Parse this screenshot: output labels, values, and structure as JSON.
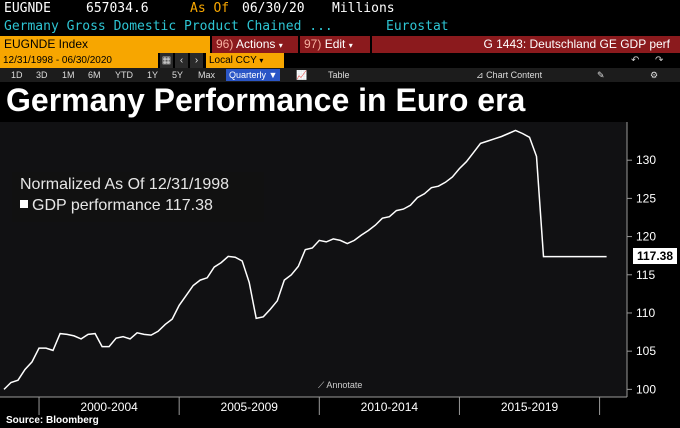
{
  "header": {
    "ticker": "EUGNDE",
    "last_value": "657034.6",
    "as_of_label": "As Of",
    "as_of_date": "06/30/20",
    "units": "Millions",
    "description": "Germany Gross Domestic Product Chained ...",
    "source": "Eurostat"
  },
  "toolbar": {
    "security_field": "EUGNDE Index",
    "actions_code": "96)",
    "actions_label": "Actions",
    "edit_code": "97)",
    "edit_label": "Edit",
    "chart_desc": "G 1443: Deutschland GE GDP perf",
    "date_range": "12/31/1998 - 06/30/2020",
    "currency": "Local CCY",
    "periods": [
      "1D",
      "3D",
      "1M",
      "6M",
      "YTD",
      "1Y",
      "5Y",
      "Max"
    ],
    "frequency": "Quarterly",
    "table_label": "Table",
    "chart_content_label": "Chart Content"
  },
  "title": "Germany Performance in Euro era",
  "legend": {
    "line1": "Normalized As Of 12/31/1998",
    "series_label": "GDP performance",
    "series_value": "117.38"
  },
  "annotate_label": "Annotate",
  "source_note": "Source: Bloomberg",
  "colors": {
    "line": "#ffffff",
    "accent": "#f7a600",
    "menu": "#8b1a1d",
    "tag_bg": "#ffffff"
  },
  "chart_data": {
    "type": "line",
    "title": "Germany Performance in Euro era",
    "series": [
      {
        "name": "GDP performance",
        "x": [
          1998.75,
          1999.0,
          1999.25,
          1999.5,
          1999.75,
          2000.0,
          2000.25,
          2000.5,
          2000.75,
          2001.0,
          2001.25,
          2001.5,
          2001.75,
          2002.0,
          2002.25,
          2002.5,
          2002.75,
          2003.0,
          2003.25,
          2003.5,
          2003.75,
          2004.0,
          2004.25,
          2004.5,
          2004.75,
          2005.0,
          2005.25,
          2005.5,
          2005.75,
          2006.0,
          2006.25,
          2006.5,
          2006.75,
          2007.0,
          2007.25,
          2007.5,
          2007.75,
          2008.0,
          2008.25,
          2008.5,
          2008.75,
          2009.0,
          2009.25,
          2009.5,
          2009.75,
          2010.0,
          2010.25,
          2010.5,
          2010.75,
          2011.0,
          2011.25,
          2011.5,
          2011.75,
          2012.0,
          2012.25,
          2012.5,
          2012.75,
          2013.0,
          2013.25,
          2013.5,
          2013.75,
          2014.0,
          2014.25,
          2014.5,
          2014.75,
          2015.0,
          2015.25,
          2015.5,
          2015.75,
          2016.0,
          2016.25,
          2016.5,
          2016.75,
          2017.0,
          2017.25,
          2017.5,
          2017.75,
          2018.0,
          2018.25,
          2018.5,
          2018.75,
          2019.0,
          2019.25,
          2019.5,
          2019.75,
          2020.0,
          2020.25
        ],
        "values": [
          100,
          100.9,
          101.2,
          102.6,
          103.6,
          105.4,
          105.4,
          105.1,
          107.3,
          107.2,
          107,
          106.6,
          107.2,
          107.3,
          105.6,
          105.6,
          106.7,
          106.9,
          106.6,
          107.4,
          107.2,
          107.1,
          107.6,
          108.5,
          109.2,
          111,
          112.3,
          113.6,
          114.3,
          114.6,
          116,
          116.6,
          117.4,
          117.3,
          116.8,
          114,
          109.3,
          109.5,
          110.5,
          111.6,
          114.3,
          115,
          116.1,
          118.3,
          118.5,
          119.5,
          119.3,
          119.7,
          119.5,
          119.1,
          119.5,
          120.2,
          120.8,
          121.5,
          122.4,
          122.6,
          123.4,
          123.6,
          124.1,
          125.1,
          125.6,
          126.4,
          126.6,
          127.1,
          127.8,
          128.9,
          129.8,
          131,
          132.2,
          132.5,
          132.8,
          133.1,
          133.5,
          133.9,
          133.5,
          133,
          130.5,
          117.38,
          117.38,
          117.38,
          117.38,
          117.38,
          117.38,
          117.38,
          117.38,
          117.38,
          117.38
        ]
      }
    ],
    "x_tick_labels": [
      "2000-2004",
      "2005-2009",
      "2010-2014",
      "2015-2019"
    ],
    "y_ticks": [
      100,
      105,
      110,
      115,
      120,
      125,
      130
    ],
    "ylim": [
      99,
      135
    ],
    "xlim": [
      1998.75,
      2020.8
    ],
    "grid": false,
    "legend_position": "top-left",
    "last_value_tag": "117.38"
  }
}
